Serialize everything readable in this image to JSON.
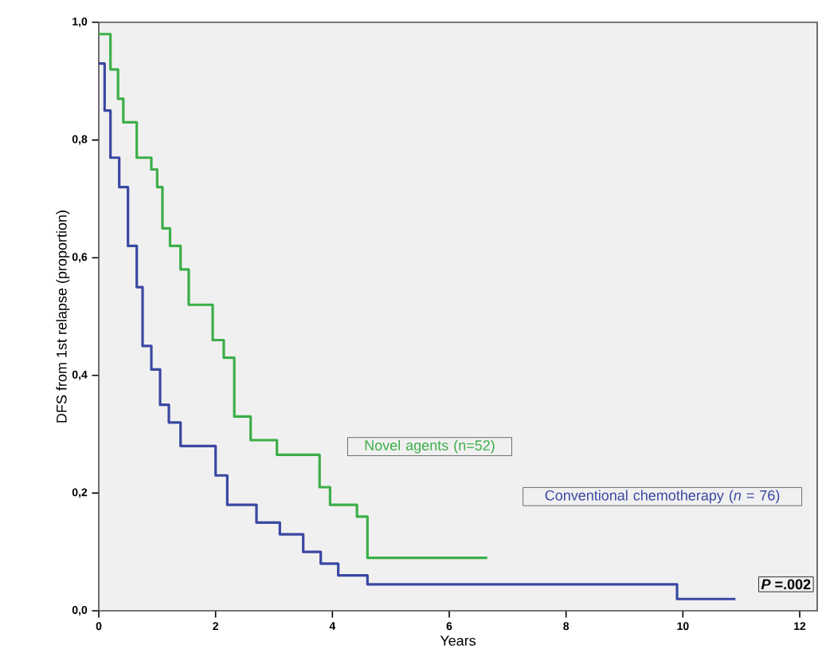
{
  "chart_data": {
    "type": "step",
    "xlabel": "Years",
    "ylabel": "DFS from 1st relapse (proportion)",
    "xlim": [
      0,
      12.3
    ],
    "ylim": [
      0,
      1
    ],
    "xticks": [
      0,
      2,
      4,
      6,
      8,
      10,
      12
    ],
    "yticks": [
      {
        "value": 0,
        "label": "0,0"
      },
      {
        "value": 0.2,
        "label": "0,2"
      },
      {
        "value": 0.4,
        "label": "0,4"
      },
      {
        "value": 0.6,
        "label": "0,6"
      },
      {
        "value": 0.8,
        "label": "0,8"
      },
      {
        "value": 1,
        "label": "1,0"
      }
    ],
    "grid": false,
    "series": [
      {
        "name": "Novel agents (n=52)",
        "color": "#3cae48",
        "x": [
          0,
          0.2,
          0.33,
          0.42,
          0.65,
          0.9,
          1.0,
          1.09,
          1.22,
          1.4,
          1.54,
          1.95,
          2.14,
          2.32,
          2.6,
          3.05,
          3.78,
          3.96,
          4.42,
          4.6,
          6.65
        ],
        "values": [
          0.98,
          0.92,
          0.87,
          0.83,
          0.77,
          0.75,
          0.72,
          0.65,
          0.62,
          0.58,
          0.52,
          0.46,
          0.43,
          0.33,
          0.29,
          0.265,
          0.21,
          0.18,
          0.16,
          0.09,
          0.09
        ]
      },
      {
        "name": "Conventional chemotherapy (*n* = 76)",
        "color": "#3a48a2",
        "x": [
          0,
          0.1,
          0.2,
          0.35,
          0.5,
          0.65,
          0.75,
          0.9,
          1.05,
          1.2,
          1.4,
          2.0,
          2.2,
          2.7,
          3.1,
          3.5,
          3.8,
          4.1,
          4.6,
          9.9,
          10.9
        ],
        "values": [
          0.93,
          0.85,
          0.77,
          0.72,
          0.62,
          0.55,
          0.45,
          0.41,
          0.35,
          0.32,
          0.28,
          0.23,
          0.18,
          0.15,
          0.13,
          0.1,
          0.08,
          0.06,
          0.045,
          0.02,
          0.02
        ]
      }
    ],
    "annotations": [
      "*P* =.002"
    ]
  }
}
